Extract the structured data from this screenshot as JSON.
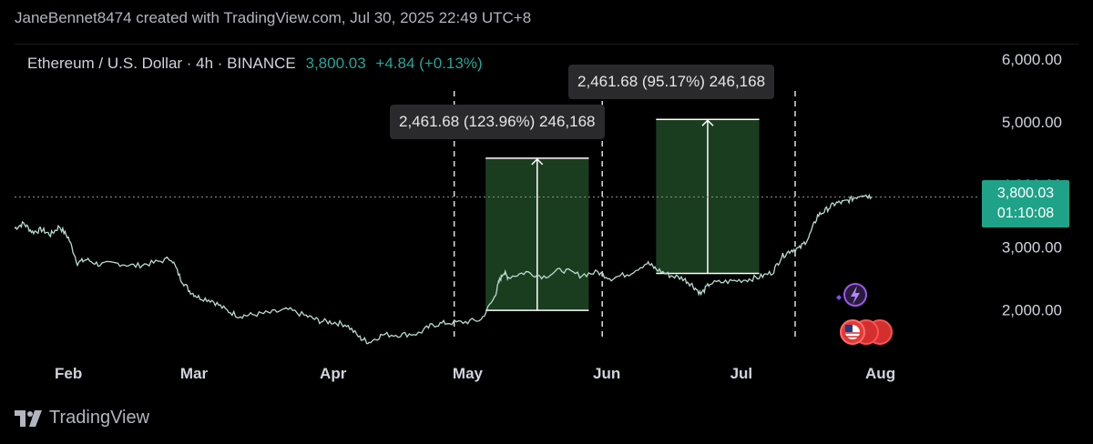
{
  "header": {
    "attribution": "JaneBennet8474 created with TradingView.com, Jul 30, 2025 22:49 UTC+8"
  },
  "legend": {
    "symbol": "Ethereum / U.S. Dollar · 4h · BINANCE",
    "last": "3,800.03",
    "change": "+4.84 (+0.13%)"
  },
  "price_tag": {
    "price": "3,800.03",
    "countdown": "01:10:08"
  },
  "measurements": [
    {
      "label": "2,461.68 (123.96%) 246,168"
    },
    {
      "label": "2,461.68 (95.17%) 246,168"
    }
  ],
  "footer": {
    "brand": "TradingView"
  },
  "colors": {
    "accent": "#26a69a",
    "price_tag_bg": "#1ea388",
    "measure_fill": "#1b3d1f",
    "line": "#b8dcd2"
  },
  "chart_data": {
    "type": "line",
    "series": [
      {
        "values_x": [
          "2025-01-20",
          "2025-01-22",
          "2025-01-24",
          "2025-01-26",
          "2025-01-28",
          "2025-01-30",
          "2025-02-01",
          "2025-02-03",
          "2025-02-05",
          "2025-02-08",
          "2025-02-12",
          "2025-02-16",
          "2025-02-20",
          "2025-02-24",
          "2025-02-26",
          "2025-02-28",
          "2025-03-02",
          "2025-03-05",
          "2025-03-08",
          "2025-03-11",
          "2025-03-14",
          "2025-03-18",
          "2025-03-22",
          "2025-03-26",
          "2025-03-29",
          "2025-04-01",
          "2025-04-04",
          "2025-04-07",
          "2025-04-09",
          "2025-04-12",
          "2025-04-16",
          "2025-04-20",
          "2025-04-23",
          "2025-04-26",
          "2025-04-30",
          "2025-05-04",
          "2025-05-07",
          "2025-05-08",
          "2025-05-09",
          "2025-05-10",
          "2025-05-14",
          "2025-05-18",
          "2025-05-22",
          "2025-05-26",
          "2025-05-30",
          "2025-06-02",
          "2025-06-06",
          "2025-06-10",
          "2025-06-12",
          "2025-06-15",
          "2025-06-18",
          "2025-06-20",
          "2025-06-22",
          "2025-06-24",
          "2025-06-28",
          "2025-07-02",
          "2025-07-05",
          "2025-07-08",
          "2025-07-10",
          "2025-07-12",
          "2025-07-14",
          "2025-07-16",
          "2025-07-18",
          "2025-07-20",
          "2025-07-22",
          "2025-07-24",
          "2025-07-26",
          "2025-07-28",
          "2025-07-30"
        ],
        "values": [
          3300,
          3380,
          3240,
          3280,
          3200,
          3330,
          3150,
          2750,
          2800,
          2720,
          2740,
          2700,
          2750,
          2820,
          2500,
          2300,
          2200,
          2150,
          2000,
          1900,
          1920,
          1950,
          2000,
          1900,
          1820,
          1800,
          1760,
          1550,
          1480,
          1600,
          1600,
          1620,
          1750,
          1790,
          1800,
          1840,
          2200,
          2450,
          2600,
          2520,
          2600,
          2530,
          2640,
          2550,
          2600,
          2500,
          2580,
          2750,
          2650,
          2550,
          2500,
          2400,
          2250,
          2420,
          2450,
          2480,
          2520,
          2600,
          2850,
          2950,
          2980,
          3150,
          3500,
          3600,
          3700,
          3720,
          3780,
          3850,
          3800
        ]
      }
    ],
    "x_ticks": [
      "Feb",
      "Mar",
      "Apr",
      "May",
      "Jun",
      "Jul",
      "Aug"
    ],
    "x_tick_dates": [
      "2025-02-01",
      "2025-03-01",
      "2025-04-01",
      "2025-05-01",
      "2025-06-01",
      "2025-07-01",
      "2025-08-01"
    ],
    "y_ticks": [
      "2,000.00",
      "3,000.00",
      "4,000.00",
      "5,000.00",
      "6,000.00"
    ],
    "y_tick_values": [
      2000,
      3000,
      4000,
      5000,
      6000
    ],
    "x_range": [
      "2025-01-20",
      "2025-08-22"
    ],
    "ylim": [
      1250,
      6250
    ],
    "current_price": 3800.03,
    "vertical_markers": [
      "2025-04-28",
      "2025-05-31",
      "2025-07-13"
    ],
    "measure_boxes": [
      {
        "x_start": "2025-05-05",
        "x_end": "2025-05-28",
        "y_low": 1990,
        "y_high": 4420
      },
      {
        "x_start": "2025-06-12",
        "x_end": "2025-07-05",
        "y_low": 2580,
        "y_high": 5040
      }
    ],
    "grid": false
  }
}
